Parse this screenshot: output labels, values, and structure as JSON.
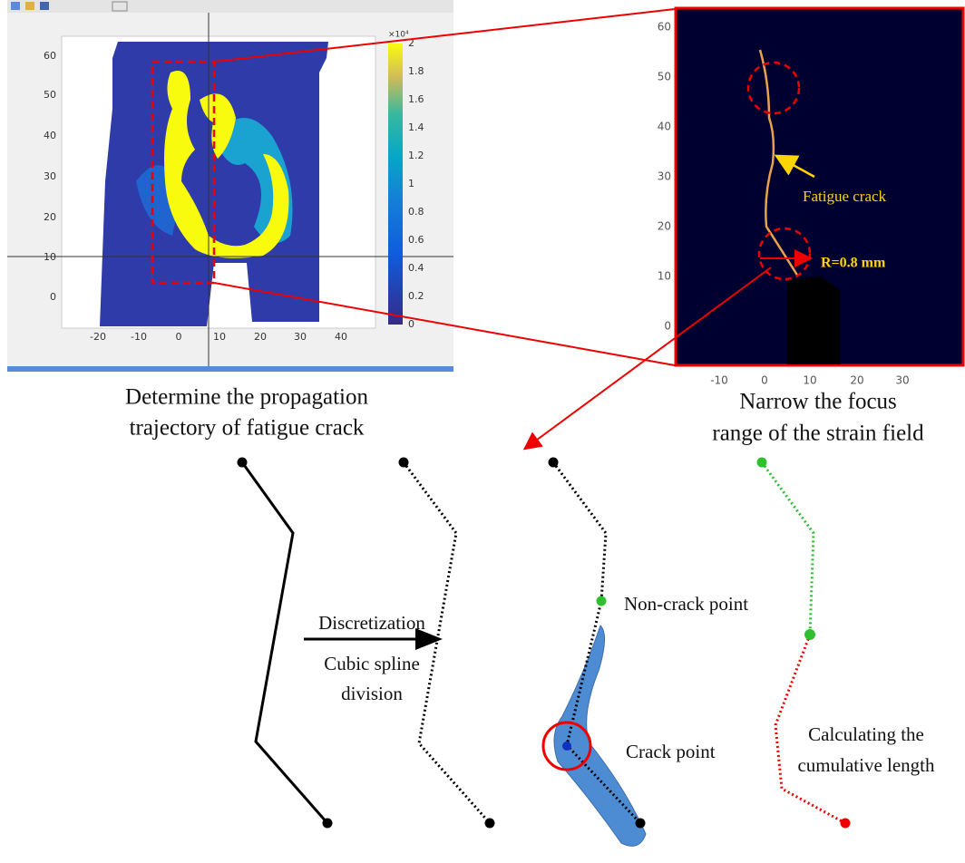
{
  "left_panel": {
    "x_ticks": [
      "-20",
      "-10",
      "0",
      "10",
      "20",
      "30",
      "40"
    ],
    "y_ticks": [
      "0",
      "10",
      "20",
      "30",
      "40",
      "50",
      "60"
    ],
    "colorbar_exponent": "×10⁴",
    "colorbar_ticks": [
      "0",
      "0.2",
      "0.4",
      "0.6",
      "0.8",
      "1",
      "1.2",
      "1.4",
      "1.6",
      "1.8",
      "2"
    ],
    "caption": [
      "Determine the propagation",
      "trajectory of fatigue crack"
    ]
  },
  "right_panel": {
    "x_ticks": [
      "-10",
      "0",
      "10",
      "20",
      "30"
    ],
    "y_ticks": [
      "0",
      "10",
      "20",
      "30",
      "40",
      "50",
      "60"
    ],
    "crack_label": "Fatigue crack",
    "radius_label": "R=0.8 mm",
    "caption": [
      "Narrow the focus",
      "range of the strain field"
    ]
  },
  "steps": {
    "arrow_label": [
      "Discretization",
      "Cubic spline",
      "division"
    ],
    "non_crack_label": "Non-crack point",
    "crack_label": "Crack point",
    "cumulative_label": [
      "Calculating the",
      "cumulative length"
    ]
  }
}
